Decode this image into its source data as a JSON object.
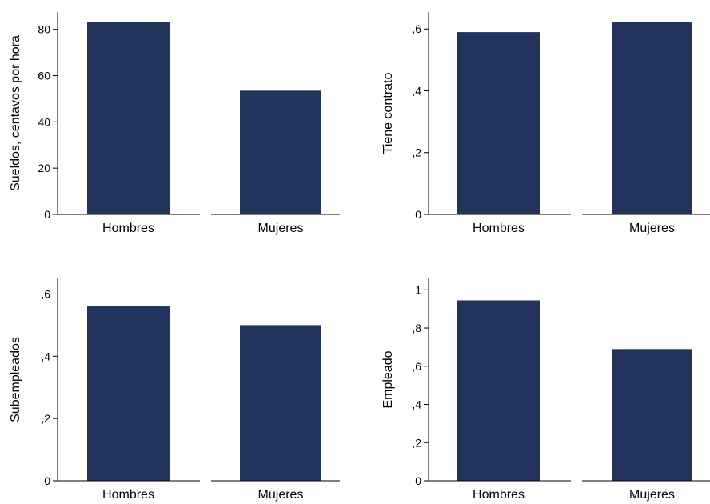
{
  "bar_color": "#22345c",
  "axis_color": "#000000",
  "chart_data": [
    {
      "type": "bar",
      "categories": [
        "Hombres",
        "Mujeres"
      ],
      "values": [
        83,
        53.5
      ],
      "ylabel": "Sueldos, centavos por hora",
      "yticks": [
        0,
        20,
        40,
        60,
        80
      ],
      "ytick_labels": [
        "0",
        "20",
        "40",
        "60",
        "80"
      ],
      "ylim": [
        0,
        87.5
      ]
    },
    {
      "type": "bar",
      "categories": [
        "Hombres",
        "Mujeres"
      ],
      "values": [
        0.59,
        0.622
      ],
      "ylabel": "Tiene contrato",
      "yticks": [
        0,
        0.2,
        0.4,
        0.6
      ],
      "ytick_labels": [
        "0",
        ",2",
        ",4",
        ",6"
      ],
      "ylim": [
        0,
        0.655
      ]
    },
    {
      "type": "bar",
      "categories": [
        "Hombres",
        "Mujeres"
      ],
      "values": [
        0.56,
        0.5
      ],
      "ylabel": "Subempleados",
      "yticks": [
        0,
        0.2,
        0.4,
        0.6
      ],
      "ytick_labels": [
        "0",
        ",2",
        ",4",
        ",6"
      ],
      "ylim": [
        0,
        0.65
      ]
    },
    {
      "type": "bar",
      "categories": [
        "Hombres",
        "Mujeres"
      ],
      "values": [
        0.945,
        0.69
      ],
      "ylabel": "Empleado",
      "yticks": [
        0,
        0.2,
        0.4,
        0.6,
        0.8,
        1
      ],
      "ytick_labels": [
        "0",
        ",2",
        ",4",
        ",6",
        ",8",
        "1"
      ],
      "ylim": [
        0,
        1.06
      ]
    }
  ]
}
